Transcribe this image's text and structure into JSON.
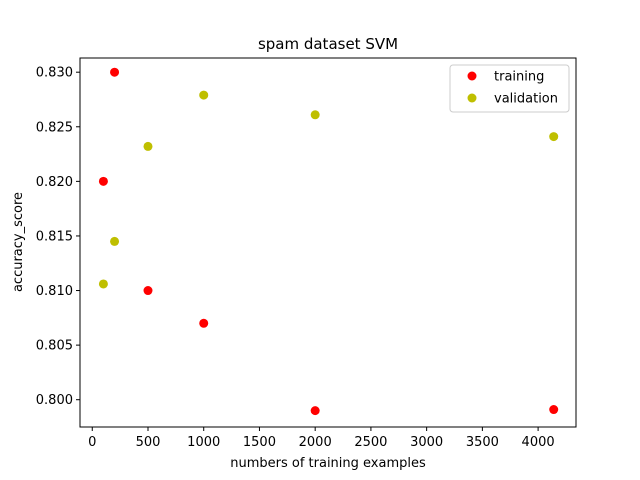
{
  "chart_data": {
    "type": "scatter",
    "title": "spam dataset SVM",
    "xlabel": "numbers of training examples",
    "ylabel": "accuracy_score",
    "xlim": [
      -110,
      4340
    ],
    "ylim": [
      0.7975,
      0.8313
    ],
    "xticks": [
      0,
      500,
      1000,
      1500,
      2000,
      2500,
      3000,
      3500,
      4000
    ],
    "xtick_labels": [
      "0",
      "500",
      "1000",
      "1500",
      "2000",
      "2500",
      "3000",
      "3500",
      "4000"
    ],
    "yticks": [
      0.8,
      0.805,
      0.81,
      0.815,
      0.82,
      0.825,
      0.83
    ],
    "ytick_labels": [
      "0.800",
      "0.805",
      "0.810",
      "0.815",
      "0.820",
      "0.825",
      "0.830"
    ],
    "grid": false,
    "legend_position": "top-right",
    "series": [
      {
        "name": "training",
        "color": "#ff0000",
        "x": [
          100,
          200,
          500,
          1000,
          2000,
          4140
        ],
        "y": [
          0.82,
          0.83,
          0.81,
          0.807,
          0.799,
          0.7991
        ]
      },
      {
        "name": "validation",
        "color": "#bfbf00",
        "x": [
          100,
          200,
          500,
          1000,
          2000,
          4140
        ],
        "y": [
          0.8106,
          0.8145,
          0.8232,
          0.8279,
          0.8261,
          0.8241
        ]
      }
    ]
  }
}
